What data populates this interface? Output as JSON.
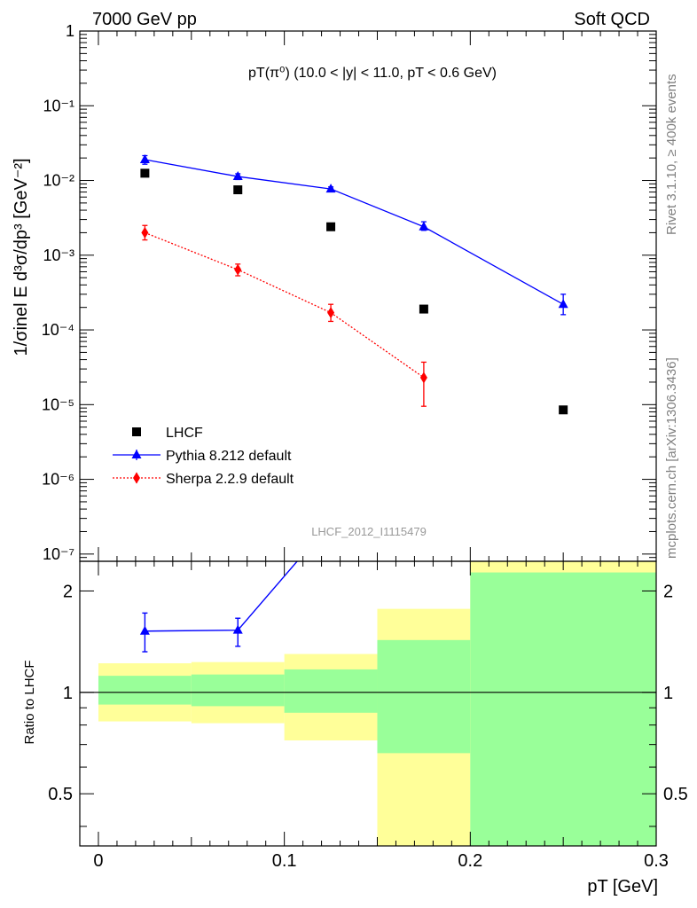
{
  "header": {
    "left": "7000 GeV pp",
    "right": "Soft QCD"
  },
  "side_texts": {
    "rivet": "Rivet 3.1.10, ≥ 400k events",
    "mcplots": "mcplots.cern.ch [arXiv:1306.3436]"
  },
  "chart_data": {
    "type": "scatter",
    "title": "pT(π⁰) (10.0 < |y| < 11.0, pT < 0.6 GeV)",
    "analysis_label": "LHCF_2012_I1115479",
    "xlabel": "pT [GeV]",
    "xlim": [
      -0.01,
      0.3
    ],
    "xticks": [
      {
        "v": 0,
        "label": "0"
      },
      {
        "v": 0.1,
        "label": "0.1"
      },
      {
        "v": 0.2,
        "label": "0.2"
      },
      {
        "v": 0.3,
        "label": "0.3"
      }
    ],
    "main": {
      "ylabel": "1/σinel E d³σ/dp³ [GeV⁻²]",
      "yscale": "log",
      "ylim": [
        8e-08,
        1
      ],
      "yticks": [
        {
          "v": 1,
          "label": "1"
        },
        {
          "v": 0.1,
          "label": "10⁻¹"
        },
        {
          "v": 0.01,
          "label": "10⁻²"
        },
        {
          "v": 0.001,
          "label": "10⁻³"
        },
        {
          "v": 0.0001,
          "label": "10⁻⁴"
        },
        {
          "v": 1e-05,
          "label": "10⁻⁵"
        },
        {
          "v": 1e-06,
          "label": "10⁻⁶"
        },
        {
          "v": 1e-07,
          "label": "10⁻⁷"
        }
      ],
      "series": [
        {
          "name": "LHCF",
          "color": "#000000",
          "marker": "square",
          "line": "none",
          "points": [
            {
              "x": 0.025,
              "y": 0.0125
            },
            {
              "x": 0.075,
              "y": 0.0075
            },
            {
              "x": 0.125,
              "y": 0.0024
            },
            {
              "x": 0.175,
              "y": 0.00019
            },
            {
              "x": 0.25,
              "y": 8.5e-06
            }
          ]
        },
        {
          "name": "Pythia 8.212 default",
          "color": "#0000ff",
          "marker": "triangle",
          "line": "solid",
          "points": [
            {
              "x": 0.025,
              "y": 0.019,
              "lo": 0.0165,
              "hi": 0.0215
            },
            {
              "x": 0.075,
              "y": 0.0113,
              "lo": 0.0103,
              "hi": 0.0123
            },
            {
              "x": 0.125,
              "y": 0.0077,
              "lo": 0.0072,
              "hi": 0.0082
            },
            {
              "x": 0.175,
              "y": 0.0024,
              "lo": 0.00215,
              "hi": 0.0028
            },
            {
              "x": 0.25,
              "y": 0.00022,
              "lo": 0.00016,
              "hi": 0.0003
            }
          ]
        },
        {
          "name": "Sherpa 2.2.9 default",
          "color": "#ff0000",
          "marker": "diamond",
          "line": "dotted",
          "points": [
            {
              "x": 0.025,
              "y": 0.002,
              "lo": 0.0016,
              "hi": 0.0025
            },
            {
              "x": 0.075,
              "y": 0.00064,
              "lo": 0.00053,
              "hi": 0.00076
            },
            {
              "x": 0.125,
              "y": 0.00017,
              "lo": 0.00013,
              "hi": 0.00022
            },
            {
              "x": 0.175,
              "y": 2.3e-05,
              "lo": 9.5e-06,
              "hi": 3.7e-05
            }
          ]
        }
      ]
    },
    "ratio": {
      "ylabel": "Ratio to LHCF",
      "yscale": "log",
      "ylim": [
        0.35,
        2.45
      ],
      "yticks": [
        {
          "v": 0.5,
          "label": "0.5"
        },
        {
          "v": 1,
          "label": "1"
        },
        {
          "v": 2,
          "label": "2"
        }
      ],
      "bands": [
        {
          "x0": 0.0,
          "x1": 0.05,
          "yellow": [
            0.82,
            1.22
          ],
          "green": [
            0.92,
            1.12
          ]
        },
        {
          "x0": 0.05,
          "x1": 0.1,
          "yellow": [
            0.81,
            1.23
          ],
          "green": [
            0.91,
            1.13
          ]
        },
        {
          "x0": 0.1,
          "x1": 0.15,
          "yellow": [
            0.72,
            1.3
          ],
          "green": [
            0.87,
            1.17
          ]
        },
        {
          "x0": 0.15,
          "x1": 0.2,
          "yellow": [
            0.35,
            1.77
          ],
          "green": [
            0.66,
            1.43
          ]
        },
        {
          "x0": 0.2,
          "x1": 0.3,
          "yellow": [
            0.35,
            2.45
          ],
          "green": [
            0.35,
            2.27
          ]
        }
      ],
      "pythia_ratio": [
        {
          "x": 0.025,
          "y": 1.52,
          "lo": 1.32,
          "hi": 1.72
        },
        {
          "x": 0.075,
          "y": 1.53,
          "lo": 1.37,
          "hi": 1.66
        },
        {
          "x": 0.125,
          "y": 3.2
        }
      ]
    }
  }
}
